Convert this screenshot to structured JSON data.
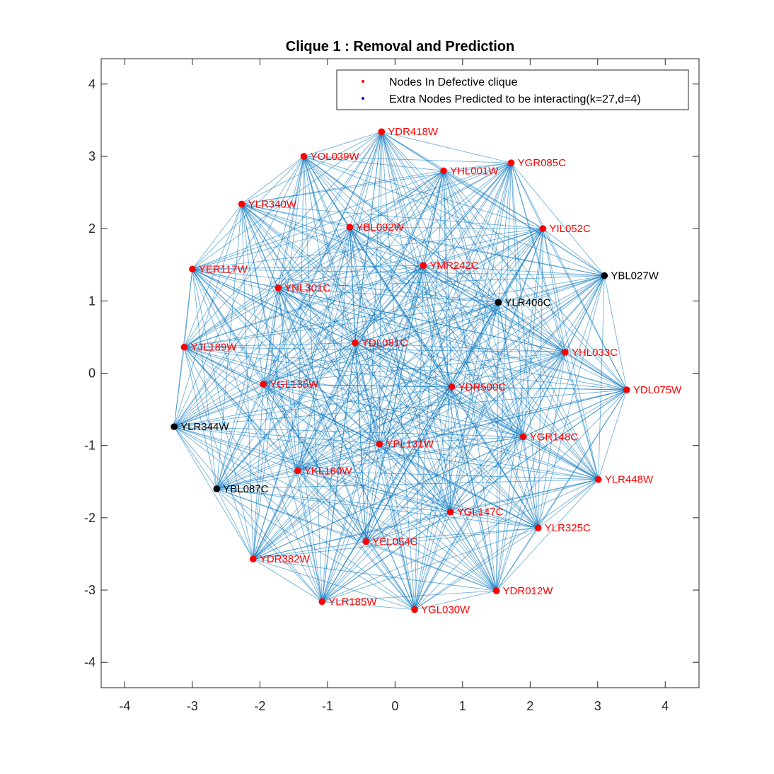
{
  "chart_data": {
    "type": "scatter",
    "title": "Clique 1 : Removal and Prediction",
    "xlim": [
      -4.35,
      4.5
    ],
    "ylim": [
      -4.35,
      4.35
    ],
    "xticks": [
      -4,
      -3,
      -2,
      -1,
      0,
      1,
      2,
      3,
      4
    ],
    "yticks": [
      -4,
      -3,
      -2,
      -1,
      0,
      1,
      2,
      3,
      4
    ],
    "xtick_labels": [
      "-4",
      "-3",
      "-2",
      "-1",
      "0",
      "1",
      "2",
      "3",
      "4"
    ],
    "ytick_labels": [
      "-4",
      "-3",
      "-2",
      "-1",
      "0",
      "1",
      "2",
      "3",
      "4"
    ],
    "grid": false,
    "legend": {
      "placement": "top-right",
      "entries": [
        {
          "label": "Nodes In Defective clique",
          "color": "#ff0000"
        },
        {
          "label": "Extra Nodes Predicted to be interacting(k=27,d=4)",
          "color": "#0000ff"
        }
      ]
    },
    "edge_color": "#0072bd",
    "node_colors": {
      "defective": "#ff0000",
      "extra": "#000000"
    },
    "label_colors": {
      "defective": "#ff0000",
      "extra": "#000000"
    },
    "nodes": [
      {
        "name": "YDR418W",
        "x": -0.2,
        "y": 3.34,
        "group": "defective"
      },
      {
        "name": "YOL039W",
        "x": -1.35,
        "y": 3.0,
        "group": "defective"
      },
      {
        "name": "YHL001W",
        "x": 0.72,
        "y": 2.8,
        "group": "defective"
      },
      {
        "name": "YGR085C",
        "x": 1.72,
        "y": 2.91,
        "group": "defective"
      },
      {
        "name": "YLR340W",
        "x": -2.27,
        "y": 2.34,
        "group": "defective"
      },
      {
        "name": "YBL092W",
        "x": -0.67,
        "y": 2.02,
        "group": "defective"
      },
      {
        "name": "YIL052C",
        "x": 2.19,
        "y": 2.0,
        "group": "defective"
      },
      {
        "name": "YMR242C",
        "x": 0.42,
        "y": 1.49,
        "group": "defective"
      },
      {
        "name": "YER117W",
        "x": -3.0,
        "y": 1.44,
        "group": "defective"
      },
      {
        "name": "YNL301C",
        "x": -1.73,
        "y": 1.18,
        "group": "defective"
      },
      {
        "name": "YBL027W",
        "x": 3.1,
        "y": 1.35,
        "group": "extra"
      },
      {
        "name": "YLR406C",
        "x": 1.53,
        "y": 0.98,
        "group": "extra"
      },
      {
        "name": "YDL081C",
        "x": -0.59,
        "y": 0.42,
        "group": "defective"
      },
      {
        "name": "YJL189W",
        "x": -3.12,
        "y": 0.36,
        "group": "defective"
      },
      {
        "name": "YHL033C",
        "x": 2.52,
        "y": 0.29,
        "group": "defective"
      },
      {
        "name": "YGL135W",
        "x": -1.95,
        "y": -0.15,
        "group": "defective"
      },
      {
        "name": "YDR500C",
        "x": 0.84,
        "y": -0.19,
        "group": "defective"
      },
      {
        "name": "YDL075W",
        "x": 3.43,
        "y": -0.23,
        "group": "defective"
      },
      {
        "name": "YLR344W",
        "x": -3.27,
        "y": -0.74,
        "group": "extra"
      },
      {
        "name": "YGR148C",
        "x": 1.9,
        "y": -0.88,
        "group": "defective"
      },
      {
        "name": "YPL131W",
        "x": -0.23,
        "y": -0.98,
        "group": "defective"
      },
      {
        "name": "YKL180W",
        "x": -1.44,
        "y": -1.35,
        "group": "defective"
      },
      {
        "name": "YLR448W",
        "x": 3.01,
        "y": -1.47,
        "group": "defective"
      },
      {
        "name": "YBL087C",
        "x": -2.64,
        "y": -1.6,
        "group": "extra"
      },
      {
        "name": "YGL147C",
        "x": 0.82,
        "y": -1.92,
        "group": "defective"
      },
      {
        "name": "YLR325C",
        "x": 2.12,
        "y": -2.14,
        "group": "defective"
      },
      {
        "name": "YEL054C",
        "x": -0.43,
        "y": -2.33,
        "group": "defective"
      },
      {
        "name": "YDR382W",
        "x": -2.1,
        "y": -2.57,
        "group": "defective"
      },
      {
        "name": "YDR012W",
        "x": 1.5,
        "y": -3.01,
        "group": "defective"
      },
      {
        "name": "YLR185W",
        "x": -1.08,
        "y": -3.16,
        "group": "defective"
      },
      {
        "name": "YGL030W",
        "x": 0.29,
        "y": -3.27,
        "group": "defective"
      }
    ],
    "edges": "all pairs of nodes are connected (complete graph)"
  }
}
